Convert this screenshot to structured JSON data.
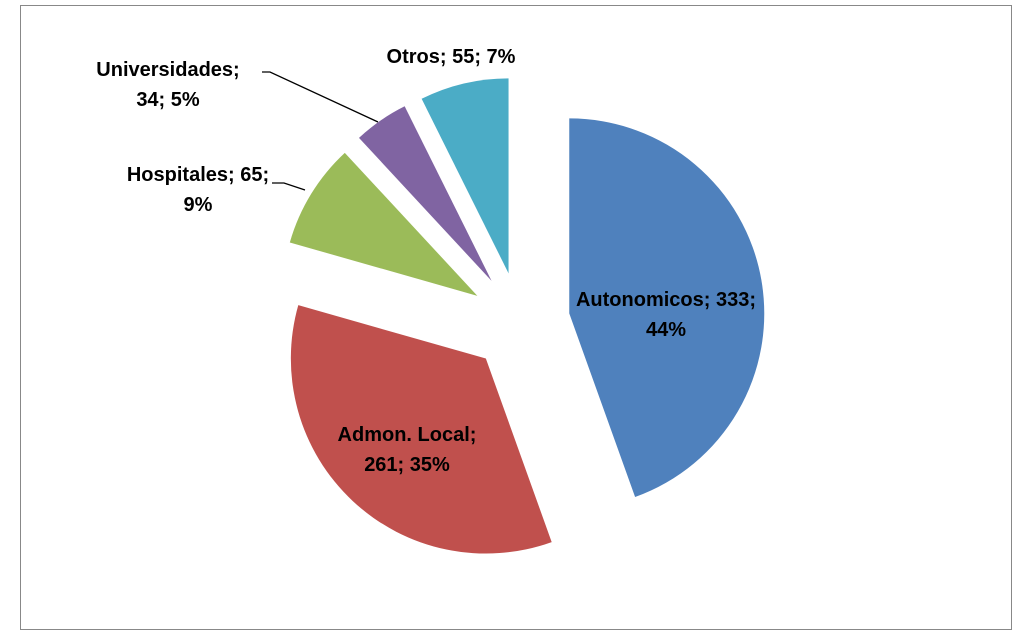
{
  "chart_data": {
    "type": "pie",
    "categories": [
      "Autonomicos",
      "Admon. Local",
      "Hospitales",
      "Universidades",
      "Otros"
    ],
    "values": [
      333,
      261,
      65,
      34,
      55
    ],
    "value_labels": [
      "Autonomicos; 333; 44%",
      "Admon. Local; 261; 35%",
      "Hospitales; 65; 9%",
      "Universidades; 34; 5%",
      "Otros; 55; 7%"
    ],
    "colors": [
      "#4f81bd",
      "#c0504d",
      "#9bbb59",
      "#8064a2",
      "#4bacc6"
    ],
    "exploded": true
  }
}
